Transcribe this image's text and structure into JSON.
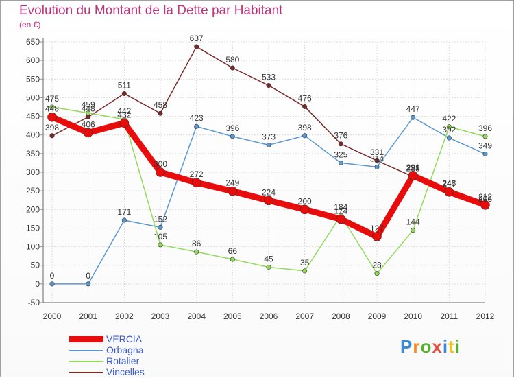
{
  "title": "Evolution du Montant de la Dette par Habitant",
  "unit": "(en €)",
  "logo": {
    "letters": [
      "P",
      "r",
      "o",
      "x",
      "i",
      "t",
      "i"
    ],
    "colors": [
      "#3a8ad6",
      "#f28a1e",
      "#58b030",
      "#e84c3c",
      "#3a8ad6",
      "#f2c31e",
      "#58b030"
    ]
  },
  "chart_data": {
    "type": "line",
    "categories": [
      "2000",
      "2001",
      "2002",
      "2003",
      "2004",
      "2005",
      "2006",
      "2007",
      "2008",
      "2009",
      "2010",
      "2011",
      "2012"
    ],
    "ylim": [
      -50,
      650
    ],
    "yticks": [
      -50,
      0,
      50,
      100,
      150,
      200,
      250,
      300,
      350,
      400,
      450,
      500,
      550,
      600,
      650
    ],
    "grid": true,
    "legend_position": "bottom-left",
    "series": [
      {
        "name": "Vincelles",
        "color": "#7b2a2a",
        "width": 1.5,
        "values": [
          398,
          448,
          511,
          458,
          637,
          580,
          533,
          476,
          376,
          331,
          288,
          248,
          206
        ]
      },
      {
        "name": "Orbagna",
        "color": "#5b98d0",
        "width": 1.5,
        "values": [
          0,
          0,
          171,
          152,
          423,
          396,
          373,
          398,
          325,
          314,
          447,
          392,
          349
        ]
      },
      {
        "name": "Rotalier",
        "color": "#93d95a",
        "width": 1.5,
        "values": [
          475,
          459,
          442,
          105,
          86,
          66,
          45,
          35,
          184,
          28,
          144,
          422,
          396
        ]
      },
      {
        "name": "VERCIA",
        "color": "#e80c0c",
        "width": 9,
        "values": [
          448,
          406,
          432,
          300,
          272,
          249,
          224,
          200,
          174,
          127,
          291,
          247,
          212
        ]
      }
    ],
    "data_labels": [
      {
        "series": "VERCIA",
        "values": [
          "448",
          "406",
          "432",
          "300",
          "272",
          "249",
          "224",
          "200",
          "174",
          "127",
          "291",
          "247",
          "212"
        ]
      },
      {
        "series": "Orbagna",
        "values": [
          "0",
          "0",
          "171",
          "152",
          "423",
          "396",
          "373",
          "398",
          "325",
          "314",
          "447",
          "392",
          "349"
        ]
      },
      {
        "series": "Rotalier",
        "values": [
          "475",
          "459",
          "442",
          "105",
          "86",
          "66",
          "45",
          "35",
          "184",
          "28",
          "144",
          "422",
          "396"
        ]
      },
      {
        "series": "Vincelles",
        "values": [
          "398",
          "448",
          "511",
          "458",
          "637",
          "580",
          "533",
          "476",
          "376",
          "331",
          "288",
          "248",
          "206"
        ]
      }
    ]
  }
}
